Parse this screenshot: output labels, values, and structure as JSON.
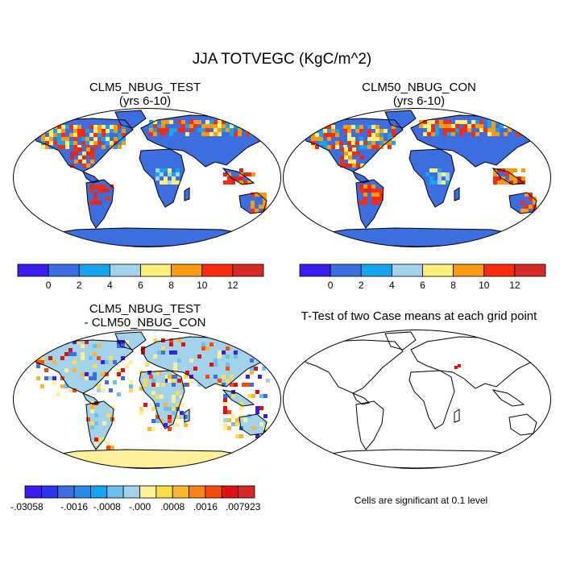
{
  "figure": {
    "title": "JJA TOTVEGC (KgC/m^2)"
  },
  "panels": [
    {
      "id": "test",
      "title_line1": "CLM5_NBUG_TEST",
      "title_line2": "(yrs 6-10)"
    },
    {
      "id": "control",
      "title_line1": "CLM50_NBUG_CON",
      "title_line2": "(yrs 6-10)"
    },
    {
      "id": "difference",
      "title_line1": "CLM5_NBUG_TEST",
      "title_line2": "- CLM50_NBUG_CON"
    },
    {
      "id": "ttest",
      "title_line1": "T-Test of two Case means at each grid point",
      "title_line2": ""
    }
  ],
  "ttest_note": "Cells are significant at 0.1 level",
  "chart_data": [
    {
      "type": "heatmap",
      "projection": "Robinson",
      "title": "CLM5_NBUG_TEST (yrs 6-10)",
      "colorbar": {
        "levels": [
          0,
          2,
          4,
          6,
          8,
          10,
          12
        ],
        "tick_labels": [
          "0",
          "2",
          "4",
          "6",
          "8",
          "10",
          "12"
        ],
        "colors": [
          "#3a1ef0",
          "#3c6ee0",
          "#16a4ee",
          "#a3d3ea",
          "#fbef7a",
          "#f99b12",
          "#fa2a0f",
          "#d42b26"
        ]
      }
    },
    {
      "type": "heatmap",
      "projection": "Robinson",
      "title": "CLM50_NBUG_CON (yrs 6-10)",
      "colorbar": {
        "levels": [
          0,
          2,
          4,
          6,
          8,
          10,
          12
        ],
        "tick_labels": [
          "0",
          "2",
          "4",
          "6",
          "8",
          "10",
          "12"
        ],
        "colors": [
          "#3a1ef0",
          "#3c6ee0",
          "#16a4ee",
          "#a3d3ea",
          "#fbef7a",
          "#f99b12",
          "#fa2a0f",
          "#d42b26"
        ]
      }
    },
    {
      "type": "heatmap",
      "projection": "Robinson",
      "title": "CLM5_NBUG_TEST - CLM50_NBUG_CON",
      "colorbar": {
        "levels": [
          -0.03058,
          -0.0024,
          -0.0016,
          -0.0012,
          -0.0008,
          -0.0004,
          -0.0,
          0.0004,
          0.0008,
          0.0012,
          0.0016,
          0.0024,
          0.007923
        ],
        "tick_labels": [
          "-.03058",
          "-.0016",
          "-.0008",
          "-.000",
          ".0008",
          ".0016",
          ".007923"
        ],
        "colors": [
          "#3a1ef0",
          "#2e33f0",
          "#3c6ee0",
          "#2c8ae8",
          "#16a4ee",
          "#6fbfee",
          "#a3d3ea",
          "#fbef9a",
          "#fbdf4a",
          "#f8b62c",
          "#f78418",
          "#f84a10",
          "#e01010",
          "#d42b26"
        ]
      }
    },
    {
      "type": "heatmap",
      "projection": "Robinson",
      "title": "T-Test of two Case means at each grid point",
      "significant_cells": "few cells over central Asia"
    }
  ],
  "palette": {
    "ocean": "#ffffff",
    "coast": "#000000",
    "ice": "#3c6ee0",
    "diff_land_base": "#a3d3ea"
  }
}
